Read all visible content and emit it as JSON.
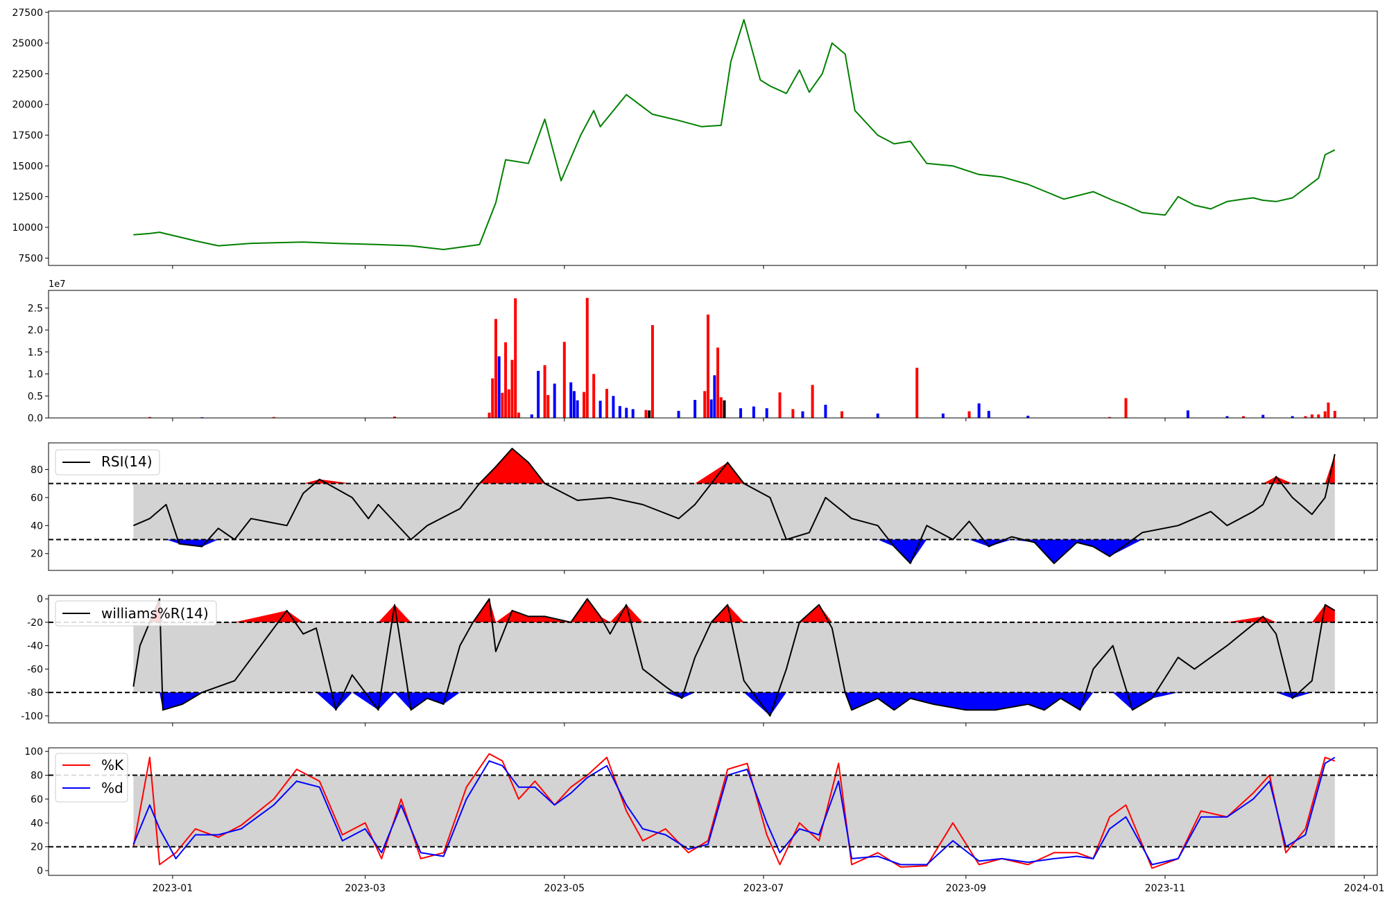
{
  "figure": {
    "background": "#ffffff"
  },
  "x_axis": {
    "type": "date",
    "start": "2022-11-24",
    "end": "2024-01-05",
    "ticks": [
      "2023-01",
      "2023-03",
      "2023-05",
      "2023-07",
      "2023-09",
      "2023-11",
      "2024-01"
    ]
  },
  "chart_data": [
    {
      "id": "price",
      "type": "line",
      "color": "#008000",
      "xlim": [
        "2022-11-24",
        "2024-01-05"
      ],
      "ylim": [
        6900,
        27600
      ],
      "yticks": [
        7500,
        10000,
        12500,
        15000,
        17500,
        20000,
        22500,
        25000,
        27500
      ],
      "x": [
        "2022-12-20",
        "2022-12-25",
        "2022-12-28",
        "2023-01-08",
        "2023-01-15",
        "2023-01-25",
        "2023-02-10",
        "2023-02-20",
        "2023-03-05",
        "2023-03-15",
        "2023-03-25",
        "2023-04-05",
        "2023-04-10",
        "2023-04-13",
        "2023-04-20",
        "2023-04-25",
        "2023-04-30",
        "2023-05-06",
        "2023-05-10",
        "2023-05-12",
        "2023-05-20",
        "2023-05-28",
        "2023-06-05",
        "2023-06-12",
        "2023-06-18",
        "2023-06-21",
        "2023-06-25",
        "2023-06-30",
        "2023-07-03",
        "2023-07-08",
        "2023-07-12",
        "2023-07-15",
        "2023-07-19",
        "2023-07-22",
        "2023-07-26",
        "2023-07-29",
        "2023-08-05",
        "2023-08-10",
        "2023-08-15",
        "2023-08-20",
        "2023-08-28",
        "2023-09-05",
        "2023-09-12",
        "2023-09-20",
        "2023-10-01",
        "2023-10-10",
        "2023-10-16",
        "2023-10-20",
        "2023-10-25",
        "2023-11-01",
        "2023-11-05",
        "2023-11-10",
        "2023-11-15",
        "2023-11-20",
        "2023-11-25",
        "2023-11-28",
        "2023-12-01",
        "2023-12-05",
        "2023-12-10",
        "2023-12-14",
        "2023-12-18",
        "2023-12-20",
        "2023-12-23"
      ],
      "y": [
        9400,
        9500,
        9600,
        8900,
        8500,
        8700,
        8800,
        8700,
        8600,
        8500,
        8200,
        8600,
        12000,
        15500,
        15200,
        18800,
        13800,
        17500,
        19500,
        18200,
        20800,
        19200,
        18700,
        18200,
        18300,
        23500,
        26900,
        22000,
        21500,
        20900,
        22800,
        21000,
        22500,
        25000,
        24100,
        19500,
        17500,
        16800,
        17000,
        15200,
        15000,
        14300,
        14100,
        13500,
        12300,
        12900,
        12200,
        11800,
        11200,
        11000,
        12500,
        11800,
        11500,
        12100,
        12300,
        12400,
        12200,
        12100,
        12400,
        13200,
        14000,
        15900,
        16300
      ]
    },
    {
      "id": "volume",
      "type": "bar",
      "offset_label": "1e7",
      "ylim": [
        0,
        29000000.0
      ],
      "yticks": [
        0,
        5000000,
        10000000,
        15000000,
        20000000,
        25000000
      ],
      "ytick_labels": [
        "0.0",
        "0.5",
        "1.0",
        "1.5",
        "2.0",
        "2.5"
      ],
      "colors": {
        "up": "#ff0000",
        "down": "#0000ff",
        "flat": "#000000"
      },
      "x": [
        "2022-12-25",
        "2023-01-10",
        "2023-02-01",
        "2023-03-10",
        "2023-04-08",
        "2023-04-09",
        "2023-04-10",
        "2023-04-11",
        "2023-04-12",
        "2023-04-13",
        "2023-04-14",
        "2023-04-15",
        "2023-04-16",
        "2023-04-17",
        "2023-04-21",
        "2023-04-23",
        "2023-04-25",
        "2023-04-26",
        "2023-04-28",
        "2023-05-01",
        "2023-05-03",
        "2023-05-04",
        "2023-05-05",
        "2023-05-07",
        "2023-05-08",
        "2023-05-10",
        "2023-05-12",
        "2023-05-14",
        "2023-05-16",
        "2023-05-18",
        "2023-05-20",
        "2023-05-22",
        "2023-05-26",
        "2023-05-27",
        "2023-05-28",
        "2023-06-05",
        "2023-06-10",
        "2023-06-13",
        "2023-06-14",
        "2023-06-15",
        "2023-06-16",
        "2023-06-17",
        "2023-06-18",
        "2023-06-19",
        "2023-06-24",
        "2023-06-28",
        "2023-07-02",
        "2023-07-06",
        "2023-07-10",
        "2023-07-13",
        "2023-07-16",
        "2023-07-20",
        "2023-07-25",
        "2023-08-05",
        "2023-08-17",
        "2023-08-25",
        "2023-09-02",
        "2023-09-05",
        "2023-09-08",
        "2023-09-20",
        "2023-10-15",
        "2023-10-20",
        "2023-11-08",
        "2023-11-20",
        "2023-11-25",
        "2023-12-01",
        "2023-12-10",
        "2023-12-14",
        "2023-12-16",
        "2023-12-18",
        "2023-12-20",
        "2023-12-21",
        "2023-12-23"
      ],
      "values": [
        200000,
        150000,
        200000,
        300000,
        1200000,
        9000000,
        22500000,
        14000000,
        5700000,
        17200000,
        6500000,
        13200000,
        27200000,
        1200000,
        800000,
        10700000,
        12000000,
        5200000,
        7800000,
        17300000,
        8100000,
        6100000,
        4000000,
        5900000,
        27300000,
        10000000,
        3900000,
        6600000,
        5000000,
        2700000,
        2300000,
        2000000,
        1800000,
        1700000,
        21100000,
        1600000,
        4100000,
        6100000,
        23500000,
        4200000,
        9700000,
        16000000,
        4700000,
        4000000,
        2200000,
        2600000,
        2200000,
        5800000,
        2000000,
        1500000,
        7500000,
        3000000,
        1500000,
        1000000,
        11400000,
        1000000,
        1500000,
        3300000,
        1600000,
        500000,
        200000,
        4500000,
        1700000,
        400000,
        400000,
        700000,
        400000,
        400000,
        800000,
        800000,
        1500000,
        3500000,
        1600000
      ],
      "bar_types": [
        "up",
        "down",
        "up",
        "up",
        "up",
        "up",
        "up",
        "down",
        "up",
        "up",
        "up",
        "up",
        "up",
        "up",
        "down",
        "down",
        "up",
        "up",
        "down",
        "up",
        "down",
        "down",
        "down",
        "up",
        "up",
        "up",
        "down",
        "up",
        "down",
        "down",
        "down",
        "down",
        "up",
        "flat",
        "up",
        "down",
        "down",
        "up",
        "up",
        "down",
        "down",
        "up",
        "up",
        "flat",
        "down",
        "down",
        "down",
        "up",
        "up",
        "down",
        "up",
        "down",
        "up",
        "down",
        "up",
        "down",
        "up",
        "down",
        "down",
        "down",
        "up",
        "up",
        "down",
        "down",
        "up",
        "down",
        "down",
        "up",
        "up",
        "up",
        "up",
        "up",
        "up"
      ]
    },
    {
      "id": "rsi",
      "type": "line",
      "legend": "RSI(14)",
      "color": "#000000",
      "band_fill": "#d3d3d3",
      "overbought": 70,
      "oversold": 30,
      "above_fill": "#ff0000",
      "below_fill": "#0000ff",
      "ylim": [
        8,
        99
      ],
      "yticks": [
        20,
        40,
        60,
        80
      ],
      "x": [
        "2022-12-20",
        "2022-12-25",
        "2022-12-30",
        "2023-01-03",
        "2023-01-10",
        "2023-01-15",
        "2023-01-20",
        "2023-01-25",
        "2023-02-05",
        "2023-02-10",
        "2023-02-15",
        "2023-02-25",
        "2023-03-02",
        "2023-03-05",
        "2023-03-15",
        "2023-03-20",
        "2023-03-30",
        "2023-04-05",
        "2023-04-10",
        "2023-04-15",
        "2023-04-20",
        "2023-04-25",
        "2023-05-05",
        "2023-05-15",
        "2023-05-25",
        "2023-06-05",
        "2023-06-10",
        "2023-06-20",
        "2023-06-25",
        "2023-07-03",
        "2023-07-08",
        "2023-07-15",
        "2023-07-20",
        "2023-07-28",
        "2023-08-05",
        "2023-08-10",
        "2023-08-15",
        "2023-08-20",
        "2023-08-28",
        "2023-09-02",
        "2023-09-08",
        "2023-09-15",
        "2023-09-22",
        "2023-09-28",
        "2023-10-05",
        "2023-10-10",
        "2023-10-15",
        "2023-10-25",
        "2023-11-05",
        "2023-11-15",
        "2023-11-20",
        "2023-11-28",
        "2023-12-01",
        "2023-12-05",
        "2023-12-10",
        "2023-12-16",
        "2023-12-20",
        "2023-12-23"
      ],
      "y": [
        40,
        45,
        55,
        27,
        25,
        38,
        30,
        45,
        40,
        63,
        73,
        60,
        45,
        55,
        30,
        40,
        52,
        70,
        82,
        95,
        85,
        70,
        58,
        60,
        55,
        45,
        55,
        85,
        70,
        60,
        30,
        35,
        60,
        45,
        40,
        25,
        13,
        40,
        30,
        43,
        25,
        32,
        28,
        13,
        28,
        25,
        18,
        35,
        40,
        50,
        40,
        50,
        55,
        75,
        60,
        48,
        60,
        91
      ]
    },
    {
      "id": "williams",
      "type": "line",
      "legend": "williams%R(14)",
      "color": "#000000",
      "band_fill": "#d3d3d3",
      "overbought": -20,
      "oversold": -80,
      "above_fill": "#ff0000",
      "below_fill": "#0000ff",
      "ylim": [
        -106,
        3
      ],
      "yticks": [
        0,
        -20,
        -40,
        -60,
        -80,
        -100
      ],
      "x": [
        "2022-12-20",
        "2022-12-22",
        "2022-12-25",
        "2022-12-28",
        "2022-12-29",
        "2023-01-04",
        "2023-01-10",
        "2023-01-20",
        "2023-02-05",
        "2023-02-10",
        "2023-02-14",
        "2023-02-20",
        "2023-02-25",
        "2023-03-05",
        "2023-03-10",
        "2023-03-15",
        "2023-03-20",
        "2023-03-25",
        "2023-03-30",
        "2023-04-03",
        "2023-04-08",
        "2023-04-10",
        "2023-04-15",
        "2023-04-20",
        "2023-04-25",
        "2023-05-03",
        "2023-05-08",
        "2023-05-12",
        "2023-05-15",
        "2023-05-20",
        "2023-05-25",
        "2023-06-01",
        "2023-06-06",
        "2023-06-10",
        "2023-06-15",
        "2023-06-20",
        "2023-06-25",
        "2023-07-03",
        "2023-07-08",
        "2023-07-12",
        "2023-07-18",
        "2023-07-22",
        "2023-07-26",
        "2023-07-28",
        "2023-08-05",
        "2023-08-10",
        "2023-08-15",
        "2023-08-22",
        "2023-09-01",
        "2023-09-10",
        "2023-09-20",
        "2023-09-25",
        "2023-09-30",
        "2023-10-06",
        "2023-10-10",
        "2023-10-16",
        "2023-10-22",
        "2023-10-28",
        "2023-11-05",
        "2023-11-10",
        "2023-11-20",
        "2023-12-01",
        "2023-12-05",
        "2023-12-10",
        "2023-12-16",
        "2023-12-20",
        "2023-12-23"
      ],
      "y": [
        -75,
        -40,
        -20,
        0,
        -95,
        -90,
        -80,
        -70,
        -10,
        -30,
        -25,
        -95,
        -65,
        -95,
        -5,
        -95,
        -85,
        -90,
        -40,
        -20,
        0,
        -45,
        -10,
        -15,
        -15,
        -20,
        0,
        -15,
        -30,
        -5,
        -60,
        -75,
        -85,
        -50,
        -20,
        -5,
        -70,
        -100,
        -60,
        -20,
        -5,
        -25,
        -80,
        -95,
        -85,
        -95,
        -85,
        -90,
        -95,
        -95,
        -90,
        -95,
        -85,
        -95,
        -60,
        -40,
        -95,
        -85,
        -50,
        -60,
        -40,
        -15,
        -30,
        -85,
        -70,
        -5,
        -10
      ]
    },
    {
      "id": "stoch",
      "type": "line",
      "band_fill": "#d3d3d3",
      "overbought": 80,
      "oversold": 20,
      "ylim": [
        -4,
        103
      ],
      "yticks": [
        0,
        20,
        40,
        60,
        80,
        100
      ],
      "x": [
        "2022-12-20",
        "2022-12-25",
        "2022-12-28",
        "2023-01-02",
        "2023-01-08",
        "2023-01-15",
        "2023-01-22",
        "2023-02-01",
        "2023-02-08",
        "2023-02-15",
        "2023-02-22",
        "2023-03-01",
        "2023-03-06",
        "2023-03-12",
        "2023-03-18",
        "2023-03-25",
        "2023-04-01",
        "2023-04-08",
        "2023-04-12",
        "2023-04-17",
        "2023-04-22",
        "2023-04-28",
        "2023-05-03",
        "2023-05-08",
        "2023-05-14",
        "2023-05-20",
        "2023-05-25",
        "2023-06-01",
        "2023-06-08",
        "2023-06-14",
        "2023-06-20",
        "2023-06-26",
        "2023-07-02",
        "2023-07-06",
        "2023-07-12",
        "2023-07-18",
        "2023-07-24",
        "2023-07-28",
        "2023-08-05",
        "2023-08-12",
        "2023-08-20",
        "2023-08-28",
        "2023-09-05",
        "2023-09-12",
        "2023-09-20",
        "2023-09-28",
        "2023-10-05",
        "2023-10-10",
        "2023-10-15",
        "2023-10-20",
        "2023-10-28",
        "2023-11-05",
        "2023-11-12",
        "2023-11-20",
        "2023-11-28",
        "2023-12-03",
        "2023-12-08",
        "2023-12-14",
        "2023-12-20",
        "2023-12-23"
      ],
      "series": [
        {
          "name": "%K",
          "color": "#ff0000",
          "values": [
            20,
            95,
            5,
            15,
            35,
            28,
            38,
            60,
            85,
            75,
            30,
            40,
            10,
            60,
            10,
            15,
            70,
            98,
            92,
            60,
            75,
            55,
            70,
            80,
            95,
            50,
            25,
            35,
            15,
            25,
            85,
            90,
            30,
            5,
            40,
            25,
            90,
            5,
            15,
            3,
            4,
            40,
            5,
            10,
            5,
            15,
            15,
            10,
            45,
            55,
            2,
            10,
            50,
            45,
            65,
            80,
            15,
            35,
            95,
            92
          ]
        },
        {
          "name": "%d",
          "color": "#0000ff",
          "values": [
            22,
            55,
            35,
            10,
            30,
            30,
            35,
            55,
            75,
            70,
            25,
            35,
            15,
            55,
            15,
            12,
            60,
            92,
            88,
            70,
            70,
            55,
            65,
            78,
            88,
            55,
            35,
            30,
            18,
            22,
            80,
            85,
            40,
            15,
            35,
            30,
            75,
            10,
            12,
            5,
            5,
            25,
            8,
            10,
            7,
            10,
            12,
            10,
            35,
            45,
            5,
            10,
            45,
            45,
            60,
            75,
            20,
            30,
            90,
            95
          ]
        }
      ]
    }
  ]
}
